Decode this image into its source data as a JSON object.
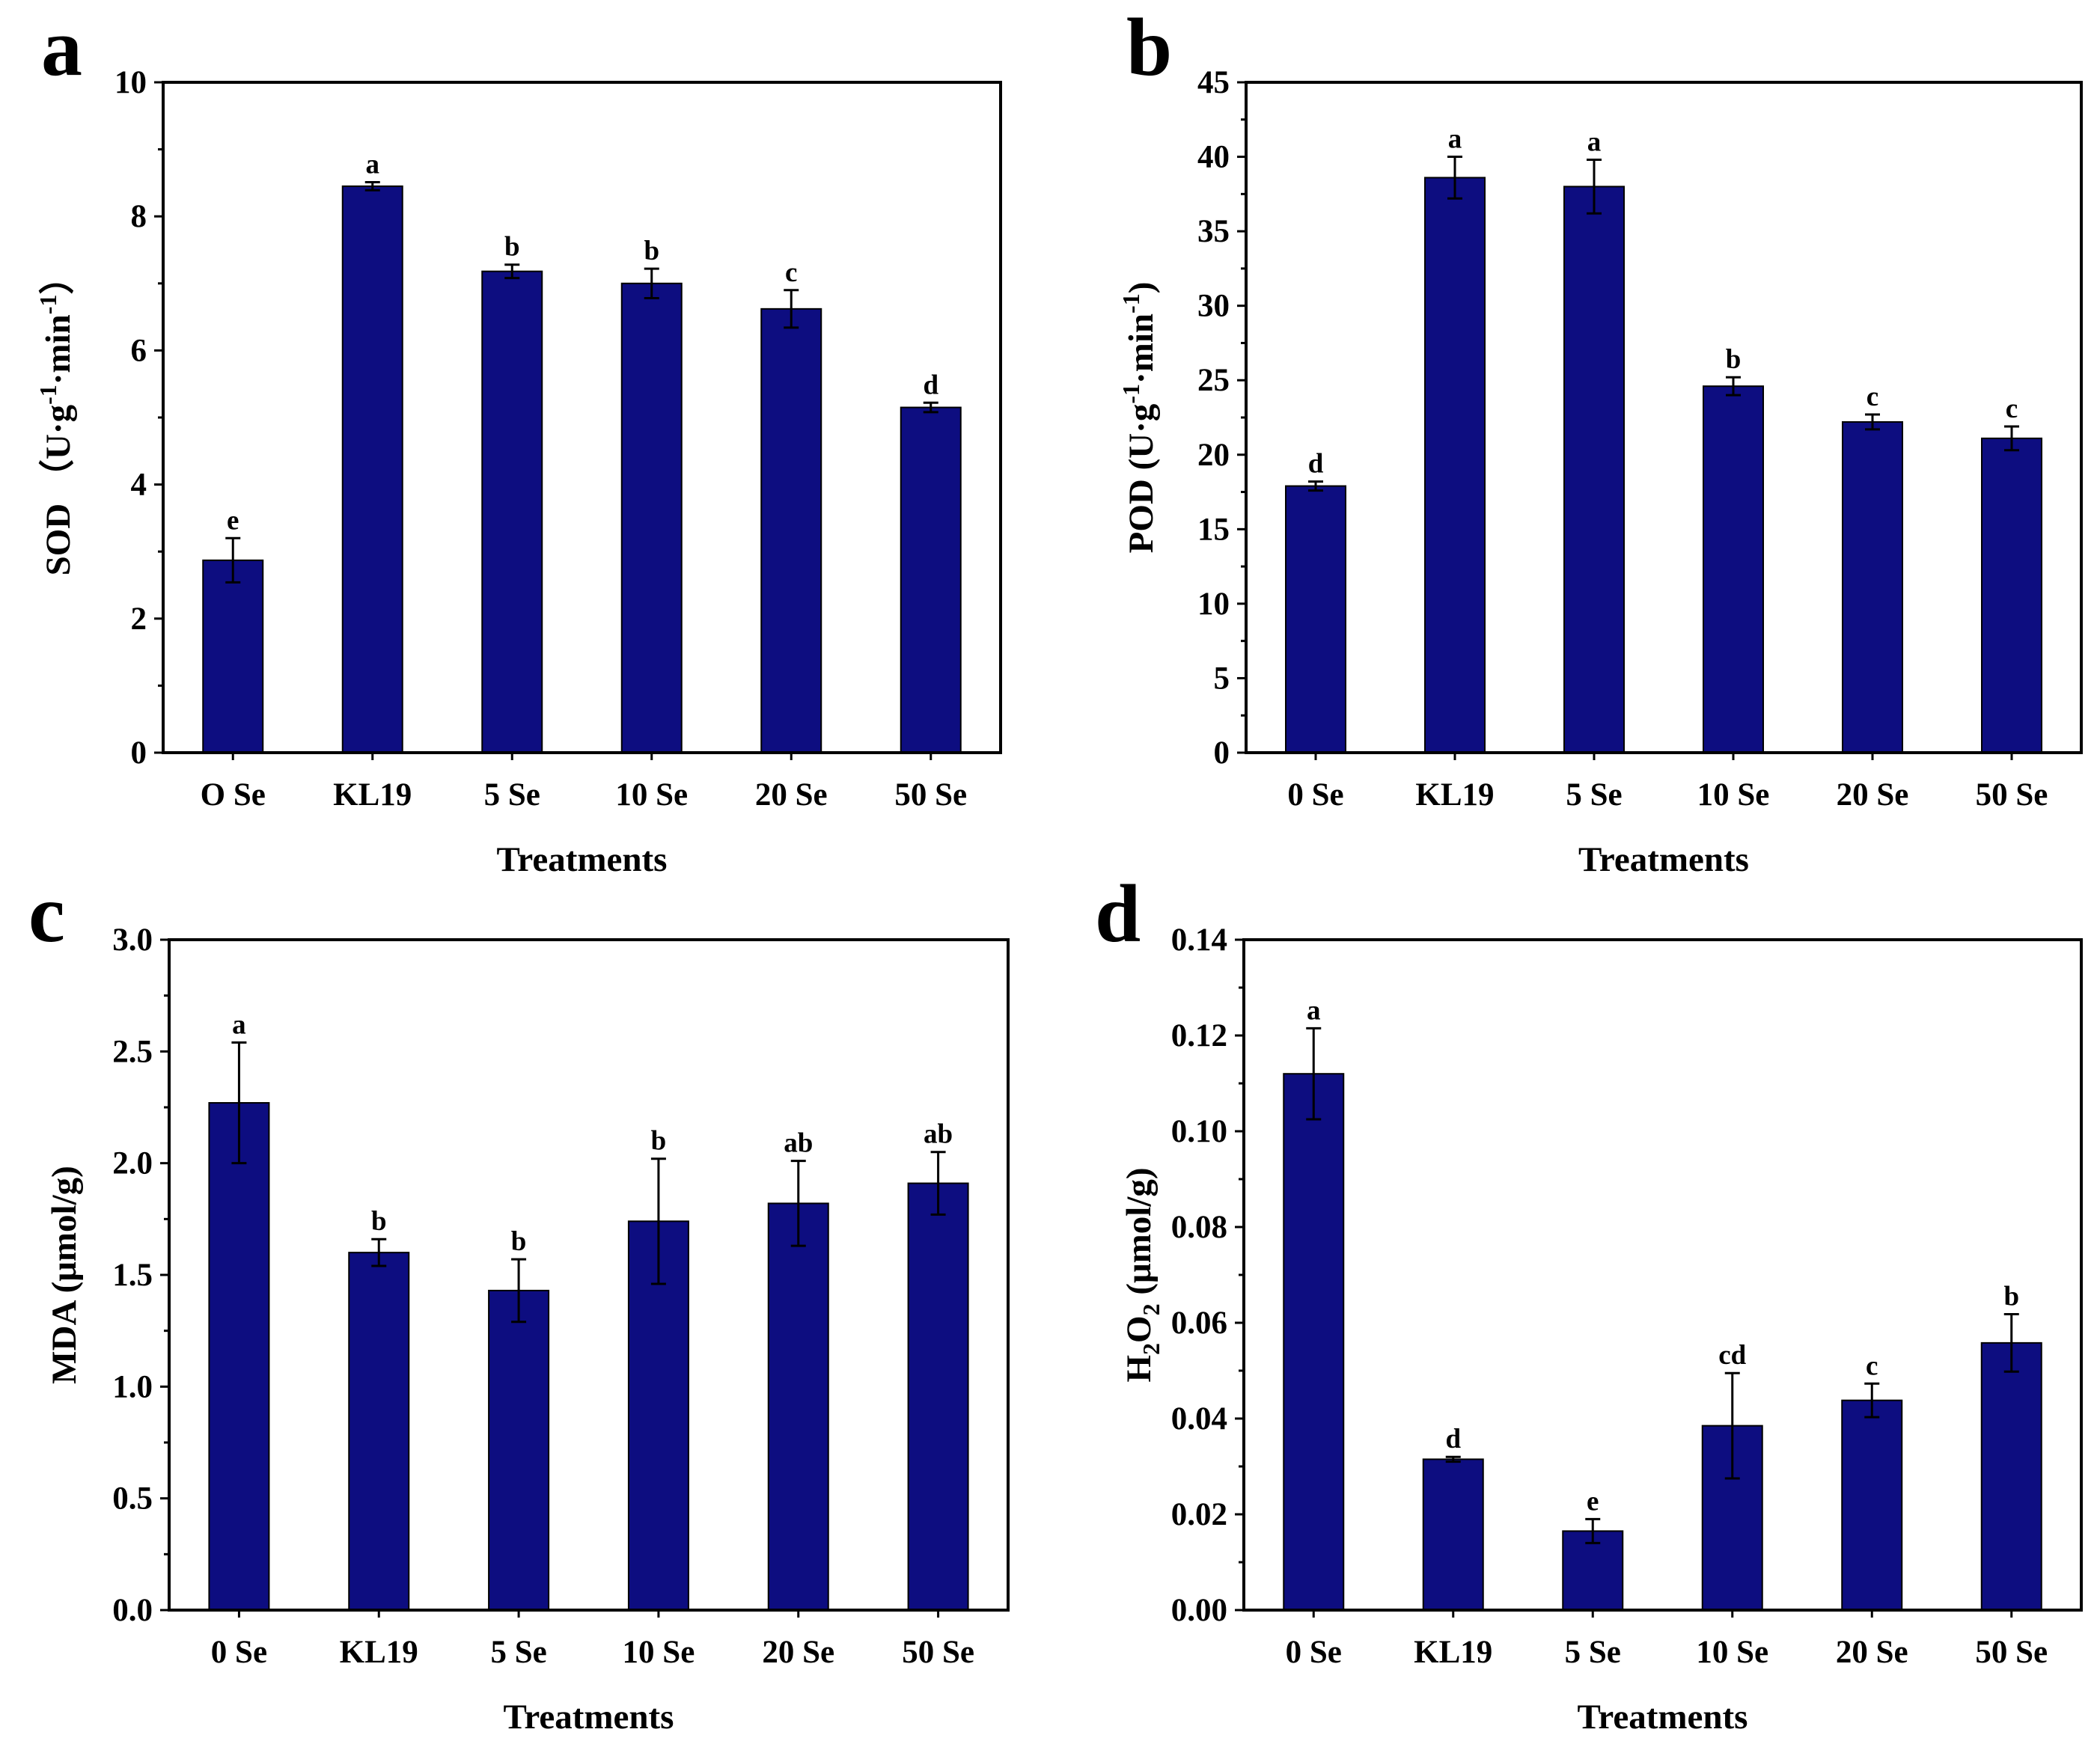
{
  "colors": {
    "bar": "#0d0d80",
    "axis": "#000000",
    "background": "#ffffff"
  },
  "chart_data": [
    {
      "panel": "a",
      "type": "bar",
      "categories": [
        "O Se",
        "KL19",
        "5 Se",
        "10 Se",
        "20 Se",
        "50 Se"
      ],
      "values": [
        2.87,
        8.45,
        7.18,
        7.0,
        6.62,
        5.15
      ],
      "errors": [
        0.33,
        0.06,
        0.1,
        0.22,
        0.28,
        0.07
      ],
      "significance": [
        "e",
        "a",
        "b",
        "b",
        "c",
        "d"
      ],
      "ylabel": "SOD（U·g-1·min-1）",
      "ylabel_parts": [
        "SOD （U·g",
        "-1",
        "·min",
        "-1",
        "）"
      ],
      "xlabel": "Treatments",
      "ylim": [
        0,
        10
      ],
      "yticks": [
        0,
        2,
        4,
        6,
        8,
        10
      ],
      "ytick_labels": [
        "0",
        "2",
        "4",
        "6",
        "8",
        "10"
      ]
    },
    {
      "panel": "b",
      "type": "bar",
      "categories": [
        "0 Se",
        "KL19",
        "5 Se",
        "10 Se",
        "20 Se",
        "50 Se"
      ],
      "values": [
        17.9,
        38.6,
        38.0,
        24.6,
        22.2,
        21.1
      ],
      "errors": [
        0.3,
        1.4,
        1.8,
        0.6,
        0.5,
        0.8
      ],
      "significance": [
        "d",
        "a",
        "a",
        "b",
        "c",
        "c"
      ],
      "ylabel": "POD (U·g-1·min-1)",
      "ylabel_parts": [
        "POD (U·g",
        "-1",
        "·min",
        "-1",
        ")"
      ],
      "xlabel": "Treatments",
      "ylim": [
        0,
        45
      ],
      "yticks": [
        0,
        5,
        10,
        15,
        20,
        25,
        30,
        35,
        40,
        45
      ],
      "ytick_labels": [
        "0",
        "5",
        "10",
        "15",
        "20",
        "25",
        "30",
        "35",
        "40",
        "45"
      ]
    },
    {
      "panel": "c",
      "type": "bar",
      "categories": [
        "0 Se",
        "KL19",
        "5 Se",
        "10 Se",
        "20 Se",
        "50 Se"
      ],
      "values": [
        2.27,
        1.6,
        1.43,
        1.74,
        1.82,
        1.91
      ],
      "errors": [
        0.27,
        0.06,
        0.14,
        0.28,
        0.19,
        0.14
      ],
      "significance": [
        "a",
        "b",
        "b",
        "b",
        "ab",
        "ab"
      ],
      "ylabel": "MDA (μmol/g)",
      "ylabel_parts": [
        "MDA (μmol/g)"
      ],
      "xlabel": "Treatments",
      "ylim": [
        0,
        3.0
      ],
      "yticks": [
        0,
        0.5,
        1.0,
        1.5,
        2.0,
        2.5,
        3.0
      ],
      "ytick_labels": [
        "0.0",
        "0.5",
        "1.0",
        "1.5",
        "2.0",
        "2.5",
        "3.0"
      ]
    },
    {
      "panel": "d",
      "type": "bar",
      "categories": [
        "0 Se",
        "KL19",
        "5 Se",
        "10 Se",
        "20 Se",
        "50 Se"
      ],
      "values": [
        0.112,
        0.0315,
        0.0165,
        0.0385,
        0.0438,
        0.0558
      ],
      "errors": [
        0.0095,
        0.0005,
        0.0025,
        0.011,
        0.0035,
        0.006
      ],
      "significance": [
        "a",
        "d",
        "e",
        "cd",
        "c",
        "b"
      ],
      "ylabel": "H2O2 (μmol/g)",
      "ylabel_parts": [
        "H",
        "2",
        "O",
        "2",
        " (μmol/g)"
      ],
      "xlabel": "Treatments",
      "ylim": [
        0,
        0.14
      ],
      "yticks": [
        0,
        0.02,
        0.04,
        0.06,
        0.08,
        0.1,
        0.12,
        0.14
      ],
      "ytick_labels": [
        "0.00",
        "0.02",
        "0.04",
        "0.06",
        "0.08",
        "0.10",
        "0.12",
        "0.14"
      ]
    }
  ]
}
